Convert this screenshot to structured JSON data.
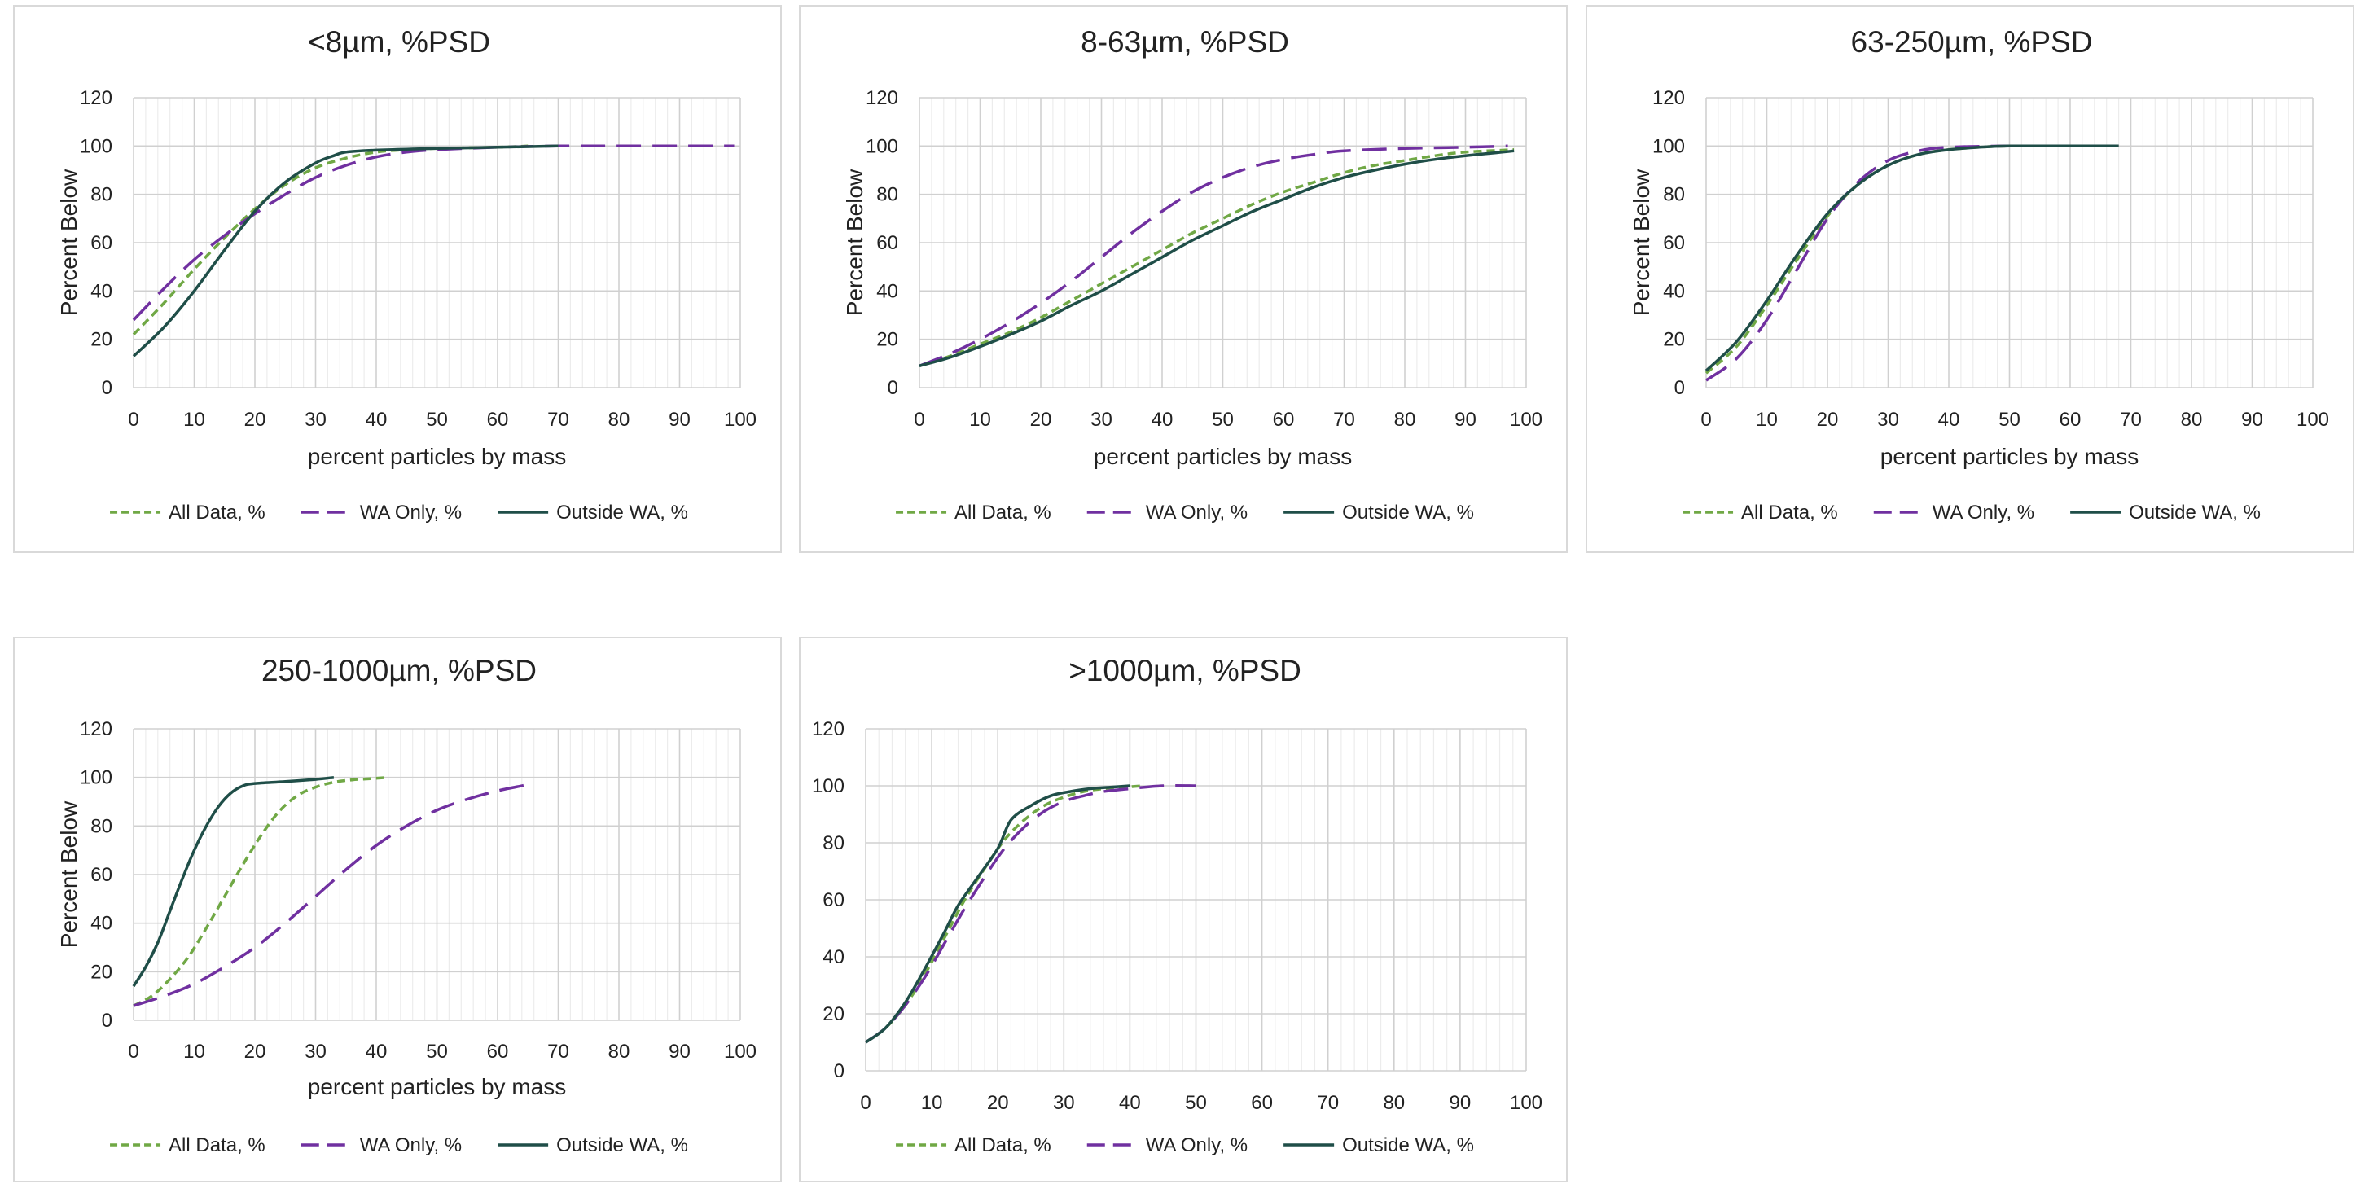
{
  "colors": {
    "all_data": "#70a845",
    "wa_only": "#7030a0",
    "outside_wa": "#1f4e48",
    "grid_major": "#d0d0d0",
    "grid_minor": "#ececec"
  },
  "chart_data": [
    {
      "type": "line",
      "title": "<8µm, %PSD",
      "xlabel": "percent particles by mass",
      "ylabel": "Percent Below",
      "xlim": [
        0,
        100
      ],
      "ylim": [
        0,
        120
      ],
      "xticks": [
        "0",
        "10",
        "20",
        "30",
        "40",
        "50",
        "60",
        "70",
        "80",
        "90",
        "100"
      ],
      "yticks": [
        "0",
        "20",
        "40",
        "60",
        "80",
        "100",
        "120"
      ],
      "legend": "bottom",
      "series": [
        {
          "name": "All Data, %",
          "style": "short-dash",
          "points": [
            [
              0,
              22
            ],
            [
              5,
              35
            ],
            [
              10,
              49
            ],
            [
              15,
              62
            ],
            [
              20,
              74
            ],
            [
              25,
              84
            ],
            [
              30,
              91
            ],
            [
              35,
              95
            ],
            [
              40,
              97.5
            ],
            [
              45,
              98.5
            ],
            [
              50,
              99
            ],
            [
              60,
              99.5
            ],
            [
              65,
              100
            ]
          ]
        },
        {
          "name": "WA Only, %",
          "style": "long-dash",
          "points": [
            [
              0,
              28
            ],
            [
              5,
              41
            ],
            [
              10,
              53
            ],
            [
              15,
              63
            ],
            [
              20,
              72
            ],
            [
              25,
              80
            ],
            [
              30,
              87
            ],
            [
              35,
              92
            ],
            [
              40,
              95.5
            ],
            [
              45,
              97.5
            ],
            [
              50,
              98.5
            ],
            [
              60,
              99.5
            ],
            [
              70,
              100
            ],
            [
              80,
              100
            ],
            [
              90,
              100
            ],
            [
              99,
              100
            ]
          ]
        },
        {
          "name": "Outside WA, %",
          "style": "solid",
          "points": [
            [
              0,
              13
            ],
            [
              5,
              25
            ],
            [
              10,
              40
            ],
            [
              15,
              57
            ],
            [
              20,
              73
            ],
            [
              25,
              85
            ],
            [
              30,
              93
            ],
            [
              33,
              96
            ],
            [
              35,
              97.5
            ],
            [
              40,
              98.3
            ],
            [
              45,
              98.7
            ],
            [
              50,
              99
            ],
            [
              60,
              99.5
            ],
            [
              70,
              100
            ]
          ]
        }
      ]
    },
    {
      "type": "line",
      "title": "8-63µm, %PSD",
      "xlabel": "percent particles by mass",
      "ylabel": "Percent Below",
      "xlim": [
        0,
        100
      ],
      "ylim": [
        0,
        120
      ],
      "xticks": [
        "0",
        "10",
        "20",
        "30",
        "40",
        "50",
        "60",
        "70",
        "80",
        "90",
        "100"
      ],
      "yticks": [
        "0",
        "20",
        "40",
        "60",
        "80",
        "100",
        "120"
      ],
      "legend": "bottom",
      "series": [
        {
          "name": "All Data, %",
          "style": "short-dash",
          "points": [
            [
              0,
              9
            ],
            [
              5,
              13
            ],
            [
              10,
              18
            ],
            [
              15,
              23
            ],
            [
              20,
              29
            ],
            [
              25,
              36
            ],
            [
              30,
              43
            ],
            [
              35,
              50
            ],
            [
              40,
              57
            ],
            [
              45,
              64
            ],
            [
              50,
              70
            ],
            [
              55,
              76
            ],
            [
              60,
              81
            ],
            [
              65,
              85
            ],
            [
              70,
              89
            ],
            [
              75,
              92
            ],
            [
              80,
              94
            ],
            [
              85,
              96
            ],
            [
              90,
              97.5
            ],
            [
              98,
              98.5
            ]
          ]
        },
        {
          "name": "WA Only, %",
          "style": "long-dash",
          "points": [
            [
              0,
              9
            ],
            [
              5,
              14
            ],
            [
              10,
              20
            ],
            [
              15,
              27
            ],
            [
              20,
              35
            ],
            [
              25,
              44
            ],
            [
              30,
              54
            ],
            [
              35,
              64
            ],
            [
              40,
              73
            ],
            [
              45,
              81
            ],
            [
              50,
              87
            ],
            [
              55,
              91.5
            ],
            [
              60,
              94.5
            ],
            [
              65,
              96.5
            ],
            [
              70,
              98
            ],
            [
              80,
              99
            ],
            [
              90,
              99.5
            ],
            [
              97,
              100
            ]
          ]
        },
        {
          "name": "Outside WA, %",
          "style": "solid",
          "points": [
            [
              0,
              9
            ],
            [
              5,
              12.5
            ],
            [
              10,
              17
            ],
            [
              15,
              22
            ],
            [
              20,
              27.5
            ],
            [
              25,
              34
            ],
            [
              30,
              40
            ],
            [
              35,
              47
            ],
            [
              40,
              54
            ],
            [
              45,
              61
            ],
            [
              50,
              67
            ],
            [
              55,
              73
            ],
            [
              60,
              78
            ],
            [
              65,
              83
            ],
            [
              70,
              87
            ],
            [
              75,
              90
            ],
            [
              80,
              92.5
            ],
            [
              85,
              94.5
            ],
            [
              90,
              96
            ],
            [
              95,
              97.2
            ],
            [
              98,
              98
            ]
          ]
        }
      ]
    },
    {
      "type": "line",
      "title": "63-250µm, %PSD",
      "xlabel": "percent particles by mass",
      "ylabel": "Percent Below",
      "xlim": [
        0,
        100
      ],
      "ylim": [
        0,
        120
      ],
      "xticks": [
        "0",
        "10",
        "20",
        "30",
        "40",
        "50",
        "60",
        "70",
        "80",
        "90",
        "100"
      ],
      "yticks": [
        "0",
        "20",
        "40",
        "60",
        "80",
        "100",
        "120"
      ],
      "legend": "bottom",
      "series": [
        {
          "name": "All Data, %",
          "style": "short-dash",
          "points": [
            [
              0,
              6
            ],
            [
              5,
              17
            ],
            [
              10,
              34
            ],
            [
              15,
              53
            ],
            [
              20,
              71
            ],
            [
              25,
              84
            ],
            [
              30,
              92
            ],
            [
              35,
              96.5
            ],
            [
              40,
              98.5
            ],
            [
              45,
              99.5
            ],
            [
              50,
              100
            ],
            [
              60,
              100
            ],
            [
              68,
              100
            ]
          ]
        },
        {
          "name": "WA Only, %",
          "style": "long-dash",
          "points": [
            [
              0,
              3
            ],
            [
              5,
              12
            ],
            [
              10,
              28
            ],
            [
              15,
              49
            ],
            [
              20,
              70
            ],
            [
              25,
              85
            ],
            [
              30,
              94
            ],
            [
              35,
              98
            ],
            [
              40,
              99.5
            ],
            [
              50,
              100
            ],
            [
              60,
              100
            ],
            [
              68,
              100
            ]
          ]
        },
        {
          "name": "Outside WA, %",
          "style": "solid",
          "points": [
            [
              0,
              7
            ],
            [
              5,
              19
            ],
            [
              10,
              36
            ],
            [
              15,
              55
            ],
            [
              20,
              72
            ],
            [
              25,
              84
            ],
            [
              30,
              92
            ],
            [
              35,
              96.5
            ],
            [
              40,
              98.5
            ],
            [
              45,
              99.5
            ],
            [
              50,
              100
            ],
            [
              60,
              100
            ],
            [
              68,
              100
            ]
          ]
        }
      ]
    },
    {
      "type": "line",
      "title": "250-1000µm, %PSD",
      "xlabel": "percent particles by mass",
      "ylabel": "Percent Below",
      "xlim": [
        0,
        100
      ],
      "ylim": [
        0,
        120
      ],
      "xticks": [
        "0",
        "10",
        "20",
        "30",
        "40",
        "50",
        "60",
        "70",
        "80",
        "90",
        "100"
      ],
      "yticks": [
        "0",
        "20",
        "40",
        "60",
        "80",
        "100",
        "120"
      ],
      "legend": "bottom",
      "series": [
        {
          "name": "All Data, %",
          "style": "short-dash",
          "points": [
            [
              0,
              6
            ],
            [
              3,
              10
            ],
            [
              6,
              17
            ],
            [
              9,
              26
            ],
            [
              12,
              38
            ],
            [
              15,
              51
            ],
            [
              18,
              64
            ],
            [
              21,
              76
            ],
            [
              24,
              86
            ],
            [
              27,
              92.5
            ],
            [
              30,
              96
            ],
            [
              33,
              98
            ],
            [
              36,
              99
            ],
            [
              39,
              99.5
            ],
            [
              42,
              100
            ]
          ]
        },
        {
          "name": "WA Only, %",
          "style": "long-dash",
          "points": [
            [
              0,
              6
            ],
            [
              5,
              10
            ],
            [
              10,
              15
            ],
            [
              15,
              22
            ],
            [
              20,
              30
            ],
            [
              25,
              40
            ],
            [
              30,
              51
            ],
            [
              35,
              62
            ],
            [
              40,
              72
            ],
            [
              45,
              80
            ],
            [
              50,
              86.5
            ],
            [
              55,
              91
            ],
            [
              60,
              94.5
            ],
            [
              65,
              97
            ]
          ]
        },
        {
          "name": "Outside WA, %",
          "style": "solid",
          "points": [
            [
              0,
              14
            ],
            [
              2,
              22
            ],
            [
              4,
              32
            ],
            [
              6,
              45
            ],
            [
              8,
              58
            ],
            [
              10,
              70
            ],
            [
              12,
              80
            ],
            [
              14,
              88
            ],
            [
              16,
              93.5
            ],
            [
              18,
              96.5
            ],
            [
              20,
              97.5
            ],
            [
              25,
              98.3
            ],
            [
              30,
              99.2
            ],
            [
              33,
              100
            ]
          ]
        }
      ]
    },
    {
      "type": "line",
      "title": ">1000µm, %PSD",
      "xlabel": "",
      "ylabel": "",
      "xlim": [
        0,
        100
      ],
      "ylim": [
        0,
        120
      ],
      "xticks": [
        "0",
        "10",
        "20",
        "30",
        "40",
        "50",
        "60",
        "70",
        "80",
        "90",
        "100"
      ],
      "yticks": [
        "0",
        "20",
        "40",
        "60",
        "80",
        "100",
        "120"
      ],
      "legend": "bottom",
      "series": [
        {
          "name": "All Data, %",
          "style": "short-dash",
          "points": [
            [
              0,
              10
            ],
            [
              3,
              15
            ],
            [
              6,
              23
            ],
            [
              9,
              34
            ],
            [
              12,
              47
            ],
            [
              15,
              60
            ],
            [
              18,
              71
            ],
            [
              21,
              81
            ],
            [
              24,
              88
            ],
            [
              27,
              93
            ],
            [
              30,
              96
            ],
            [
              33,
              98
            ],
            [
              36,
              99
            ],
            [
              39,
              99.5
            ],
            [
              42,
              100
            ]
          ]
        },
        {
          "name": "WA Only, %",
          "style": "long-dash",
          "points": [
            [
              0,
              10
            ],
            [
              3,
              15
            ],
            [
              6,
              23
            ],
            [
              9,
              33
            ],
            [
              12,
              45
            ],
            [
              15,
              57
            ],
            [
              18,
              68
            ],
            [
              21,
              78
            ],
            [
              24,
              85.5
            ],
            [
              27,
              91
            ],
            [
              30,
              94.5
            ],
            [
              33,
              96.5
            ],
            [
              36,
              98
            ],
            [
              40,
              99
            ],
            [
              45,
              100
            ],
            [
              50,
              100
            ]
          ]
        },
        {
          "name": "Outside WA, %",
          "style": "solid",
          "points": [
            [
              0,
              10
            ],
            [
              3,
              15
            ],
            [
              6,
              24
            ],
            [
              9,
              36
            ],
            [
              12,
              49
            ],
            [
              14,
              58
            ],
            [
              17,
              68
            ],
            [
              20,
              78
            ],
            [
              22,
              88
            ],
            [
              25,
              93
            ],
            [
              28,
              96.5
            ],
            [
              31,
              98
            ],
            [
              34,
              99
            ],
            [
              37,
              99.5
            ],
            [
              40,
              100
            ]
          ]
        }
      ]
    }
  ]
}
